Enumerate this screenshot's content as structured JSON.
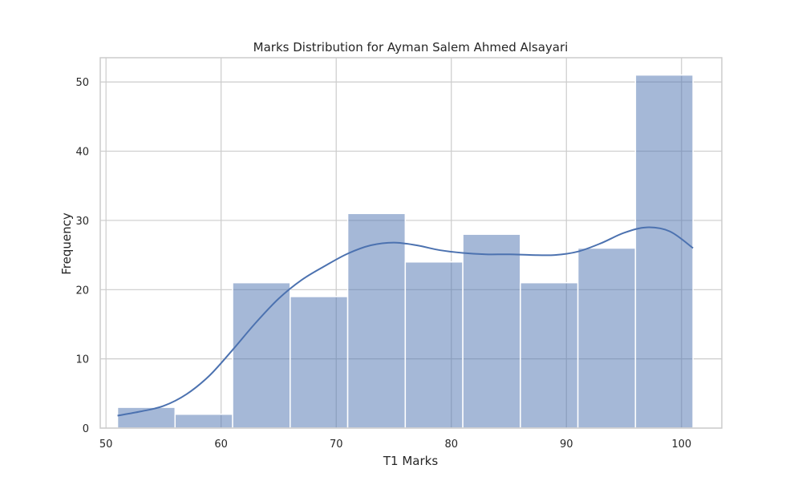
{
  "chart_data": {
    "type": "bar",
    "title": "Marks Distribution for Ayman Salem Ahmed Alsayari",
    "xlabel": "T1 Marks",
    "ylabel": "Frequency",
    "bin_edges": [
      51,
      56,
      61,
      66,
      71,
      76,
      81,
      86,
      91,
      96,
      101
    ],
    "values": [
      3,
      2,
      21,
      19,
      31,
      24,
      28,
      21,
      26,
      51
    ],
    "xlim": [
      49.5,
      103.5
    ],
    "ylim": [
      0,
      53.5
    ],
    "xticks": [
      50,
      60,
      70,
      80,
      90,
      100
    ],
    "yticks": [
      0,
      10,
      20,
      30,
      40,
      50
    ],
    "grid": true,
    "kde": {
      "x": [
        51,
        53,
        55,
        57,
        59,
        61,
        63,
        65,
        67,
        69,
        71,
        73,
        75,
        77,
        79,
        81,
        83,
        85,
        87,
        89,
        91,
        93,
        95,
        97,
        99,
        101
      ],
      "y": [
        1.8,
        2.4,
        3.2,
        4.9,
        7.6,
        11.3,
        15.2,
        18.7,
        21.4,
        23.4,
        25.2,
        26.4,
        26.8,
        26.4,
        25.7,
        25.3,
        25.1,
        25.1,
        25.0,
        25.0,
        25.5,
        26.7,
        28.2,
        29.0,
        28.4,
        26.0
      ]
    },
    "colors": {
      "bar_fill": "#4c72b0",
      "bar_opacity": 0.5,
      "kde_line": "#4c72b0",
      "grid": "#cccccc",
      "frame": "#cccccc"
    }
  }
}
